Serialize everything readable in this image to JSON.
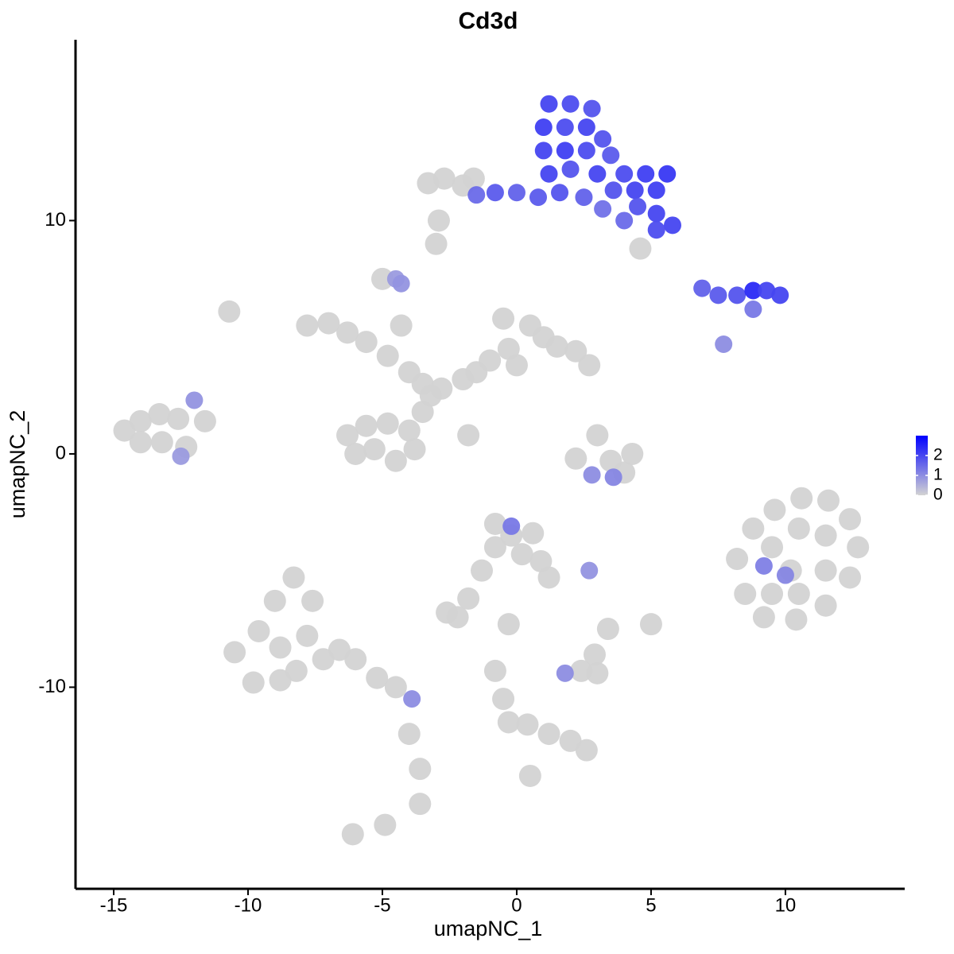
{
  "chart_data": {
    "type": "scatter",
    "title": "Cd3d",
    "x_label": "umapNC_1",
    "y_label": "umapNC_2",
    "xlim": [
      -16.42,
      14.44
    ],
    "ylim": [
      -18.64,
      17.75
    ],
    "xticks": [
      -15,
      -10,
      -5,
      0,
      5,
      10
    ],
    "yticks": [
      -10,
      0,
      10
    ],
    "colors": [
      "#D3D3D3",
      "#0000FF"
    ],
    "colorbar": {
      "lim": [
        0,
        3
      ],
      "ticks": [
        0,
        1,
        2
      ]
    },
    "x": [
      1.2,
      2,
      2.8,
      1,
      1.8,
      2.6,
      3.2,
      1,
      1.8,
      2.6,
      3.5,
      1.2,
      2,
      3,
      4,
      4.8,
      5.6,
      3.6,
      4.4,
      5.2,
      4.5,
      5.2,
      5.8,
      5.2,
      2.5,
      1.6,
      0.8,
      0,
      -0.8,
      -1.5,
      3.2,
      4,
      -3.3,
      -2.7,
      -2,
      -1.6,
      4.6,
      -3,
      -4.5,
      6.9,
      7.5,
      8.2,
      8.8,
      9.3,
      9.8,
      8.8,
      7.7,
      -7.8,
      -7,
      -6.3,
      -5.6,
      -4.8,
      -4,
      -3.5,
      -2.8,
      -2,
      -1.5,
      -3.5,
      -4.3,
      -5,
      -1,
      -0.3,
      0.5,
      1,
      1.5,
      2.2,
      2.7,
      0,
      -0.5,
      -6.3,
      -5.6,
      -4.8,
      -4,
      -3.8,
      -5.3,
      -4.5,
      -6,
      -3.2,
      -1.8,
      -14.6,
      -14,
      -13.3,
      -12.6,
      -14,
      -13.2,
      -12.3,
      -12,
      -11.6,
      -12.5,
      8.2,
      8.8,
      9.6,
      10.6,
      11.6,
      12.4,
      12.7,
      12.4,
      11.5,
      10.4,
      9.2,
      8.5,
      9.5,
      10.5,
      11.5,
      10.2,
      11.5,
      9.5,
      10.5,
      9.2,
      10,
      -10.5,
      -9.8,
      -8.8,
      -8.2,
      -9.6,
      -9,
      -8.3,
      -7.6,
      -8.8,
      -7.8,
      -7.2,
      -6.6,
      -6,
      -5.2,
      -4.5,
      -3.9,
      -4,
      -3.6,
      -3.6,
      2.2,
      3,
      3.5,
      4,
      4.3,
      2.8,
      3.6,
      -0.8,
      -0.2,
      0.6,
      -0.8,
      0.2,
      0.9,
      1.2,
      -0.2,
      -1.3,
      -1.8,
      -2.6,
      -2.2,
      1.8,
      2.4,
      3,
      2.9,
      3.4,
      5,
      2.7,
      -0.3,
      -0.8,
      -0.5,
      -0.3,
      0.4,
      1.2,
      2,
      2.6,
      0.5,
      -6.1,
      -4.9,
      -10.7,
      -4.3,
      -2.9
    ],
    "y": [
      15,
      15,
      14.8,
      14,
      14,
      14,
      13.5,
      13,
      13,
      13,
      12.8,
      12,
      12.2,
      12,
      12,
      12,
      12,
      11.3,
      11.3,
      11.3,
      10.6,
      10.3,
      9.8,
      9.6,
      11,
      11.2,
      11,
      11.2,
      11.2,
      11.1,
      10.5,
      10,
      11.6,
      11.8,
      11.5,
      11.8,
      8.8,
      9,
      7.5,
      7.1,
      6.8,
      6.8,
      7.0,
      7.0,
      6.8,
      6.2,
      4.7,
      5.5,
      5.6,
      5.2,
      4.8,
      4.2,
      3.5,
      3,
      2.8,
      3.2,
      3.5,
      1.8,
      5.5,
      7.5,
      4,
      4.5,
      5.5,
      5,
      4.6,
      4.4,
      3.8,
      3.8,
      5.8,
      0.8,
      1.2,
      1.3,
      1,
      0.2,
      0.2,
      -0.3,
      0,
      2.5,
      0.8,
      1,
      1.4,
      1.7,
      1.5,
      0.5,
      0.5,
      0.3,
      2.3,
      1.4,
      -0.1,
      -4.5,
      -3.2,
      -2.4,
      -1.9,
      -2,
      -2.8,
      -4,
      -5.3,
      -6.5,
      -7.1,
      -7,
      -6,
      -4,
      -3.2,
      -3.5,
      -5,
      -5,
      -6,
      -6,
      -4.8,
      -5.2,
      -8.5,
      -9.8,
      -9.7,
      -9.3,
      -7.6,
      -6.3,
      -5.3,
      -6.3,
      -8.3,
      -7.8,
      -8.8,
      -8.4,
      -8.8,
      -9.6,
      -10,
      -10.5,
      -12,
      -13.5,
      -15,
      -0.2,
      0.8,
      -0.3,
      -0.8,
      0,
      -0.9,
      -1,
      -3,
      -3.5,
      -3.4,
      -4,
      -4.3,
      -4.6,
      -5.3,
      -3.1,
      -5,
      -6.2,
      -6.8,
      -7,
      -9.4,
      -9.3,
      -9.4,
      -8.6,
      -7.5,
      -7.3,
      -5,
      -7.3,
      -9.3,
      -10.5,
      -11.5,
      -11.6,
      -12,
      -12.3,
      -12.7,
      -13.8,
      -16.3,
      -15.9,
      6.1,
      7.3,
      10
    ],
    "values": [
      2.0,
      1.9,
      1.8,
      2.1,
      1.9,
      2.0,
      1.8,
      2.0,
      2.1,
      1.9,
      1.7,
      2.0,
      1.8,
      2.0,
      1.9,
      2.1,
      2.2,
      1.8,
      2.0,
      2.1,
      1.8,
      2.0,
      2.0,
      1.9,
      1.6,
      1.8,
      1.7,
      1.6,
      1.7,
      1.5,
      1.4,
      1.5,
      0,
      0,
      0,
      0,
      0,
      0,
      0.8,
      1.6,
      1.7,
      1.8,
      2.4,
      2.0,
      2.0,
      1.3,
      1.0,
      0,
      0,
      0,
      0,
      0,
      0,
      0,
      0,
      0,
      0,
      0,
      0,
      0,
      0,
      0,
      0,
      0,
      0,
      0,
      0,
      0,
      0,
      0,
      0,
      0,
      0,
      0,
      0,
      0,
      0,
      0,
      0,
      0,
      0,
      0,
      0,
      0,
      0,
      0,
      0.9,
      0,
      0.8,
      0,
      0,
      0,
      0,
      0,
      0,
      0,
      0,
      0,
      0,
      0,
      0,
      0,
      0,
      0,
      0,
      0,
      0,
      0,
      1.2,
      1.1,
      0,
      0,
      0,
      0,
      0,
      0,
      0,
      0,
      0,
      0,
      0,
      0,
      0,
      0,
      0,
      1.0,
      0,
      0,
      0,
      0,
      0,
      0,
      0,
      0,
      1.0,
      1.1,
      0,
      0,
      0,
      0,
      0,
      0,
      0,
      1.3,
      0,
      0,
      0,
      0,
      1.0,
      0,
      0,
      0,
      0,
      0,
      0.9,
      0,
      0,
      0,
      0,
      0,
      0,
      0,
      0,
      0,
      0,
      0,
      0,
      0.9,
      0
    ]
  }
}
